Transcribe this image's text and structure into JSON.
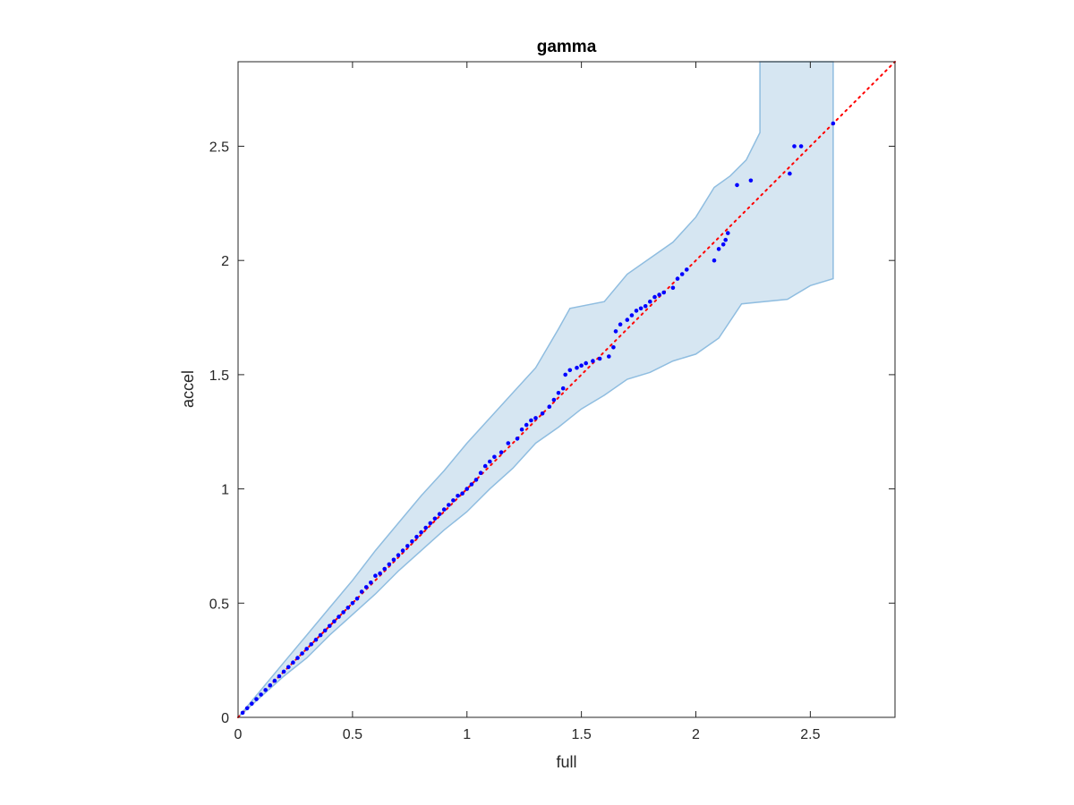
{
  "chart_data": {
    "type": "scatter",
    "title": "gamma",
    "xlabel": "full",
    "ylabel": "accel",
    "xlim": [
      0,
      2.87
    ],
    "ylim": [
      0,
      2.87
    ],
    "xticks": [
      0,
      0.5,
      1,
      1.5,
      2,
      2.5
    ],
    "yticks": [
      0,
      0.5,
      1,
      1.5,
      2,
      2.5
    ],
    "xtick_labels": [
      "0",
      "0.5",
      "1",
      "1.5",
      "2",
      "2.5"
    ],
    "ytick_labels": [
      "0",
      "0.5",
      "1",
      "1.5",
      "2",
      "2.5"
    ],
    "grid": false,
    "colors": {
      "points": "#0000ff",
      "reference_line": "#ff0000",
      "band_fill": "#d6e6f2",
      "band_edge": "#8fbde0",
      "axes": "#262626"
    },
    "reference_line": {
      "x": [
        0,
        2.87
      ],
      "y": [
        0,
        2.87
      ],
      "style": "dotted"
    },
    "confidence_band": {
      "upper": [
        [
          0,
          0
        ],
        [
          0.1,
          0.12
        ],
        [
          0.2,
          0.24
        ],
        [
          0.3,
          0.36
        ],
        [
          0.4,
          0.48
        ],
        [
          0.5,
          0.6
        ],
        [
          0.6,
          0.73
        ],
        [
          0.7,
          0.85
        ],
        [
          0.8,
          0.97
        ],
        [
          0.9,
          1.08
        ],
        [
          1.0,
          1.2
        ],
        [
          1.1,
          1.31
        ],
        [
          1.2,
          1.42
        ],
        [
          1.3,
          1.53
        ],
        [
          1.4,
          1.7
        ],
        [
          1.45,
          1.79
        ],
        [
          1.6,
          1.82
        ],
        [
          1.7,
          1.94
        ],
        [
          1.9,
          2.08
        ],
        [
          2.0,
          2.19
        ],
        [
          2.08,
          2.32
        ],
        [
          2.15,
          2.37
        ],
        [
          2.22,
          2.44
        ],
        [
          2.28,
          2.56
        ],
        [
          2.28,
          2.87
        ],
        [
          2.6,
          2.87
        ]
      ],
      "lower": [
        [
          0,
          0
        ],
        [
          0.1,
          0.09
        ],
        [
          0.2,
          0.18
        ],
        [
          0.3,
          0.26
        ],
        [
          0.4,
          0.36
        ],
        [
          0.5,
          0.45
        ],
        [
          0.6,
          0.54
        ],
        [
          0.7,
          0.64
        ],
        [
          0.8,
          0.73
        ],
        [
          0.9,
          0.82
        ],
        [
          1.0,
          0.9
        ],
        [
          1.1,
          1.0
        ],
        [
          1.2,
          1.09
        ],
        [
          1.3,
          1.2
        ],
        [
          1.4,
          1.27
        ],
        [
          1.5,
          1.35
        ],
        [
          1.6,
          1.41
        ],
        [
          1.7,
          1.48
        ],
        [
          1.8,
          1.51
        ],
        [
          1.9,
          1.56
        ],
        [
          2.0,
          1.59
        ],
        [
          2.1,
          1.66
        ],
        [
          2.2,
          1.81
        ],
        [
          2.4,
          1.83
        ],
        [
          2.5,
          1.89
        ],
        [
          2.6,
          1.92
        ]
      ]
    },
    "points": {
      "x": [
        0.02,
        0.04,
        0.06,
        0.08,
        0.1,
        0.12,
        0.14,
        0.16,
        0.18,
        0.2,
        0.22,
        0.24,
        0.26,
        0.28,
        0.3,
        0.32,
        0.34,
        0.36,
        0.38,
        0.4,
        0.42,
        0.44,
        0.46,
        0.48,
        0.5,
        0.52,
        0.54,
        0.56,
        0.58,
        0.6,
        0.62,
        0.64,
        0.66,
        0.68,
        0.7,
        0.72,
        0.74,
        0.76,
        0.78,
        0.8,
        0.82,
        0.84,
        0.86,
        0.88,
        0.9,
        0.92,
        0.94,
        0.96,
        0.98,
        1.0,
        1.02,
        1.04,
        1.06,
        1.08,
        1.1,
        1.12,
        1.15,
        1.18,
        1.22,
        1.24,
        1.26,
        1.28,
        1.3,
        1.33,
        1.36,
        1.38,
        1.4,
        1.42,
        1.43,
        1.45,
        1.48,
        1.5,
        1.52,
        1.55,
        1.58,
        1.62,
        1.64,
        1.65,
        1.67,
        1.7,
        1.72,
        1.74,
        1.76,
        1.78,
        1.8,
        1.82,
        1.84,
        1.86,
        1.9,
        1.92,
        1.94,
        1.96,
        2.08,
        2.1,
        2.12,
        2.13,
        2.14,
        2.18,
        2.24,
        2.41,
        2.43,
        2.46,
        2.6
      ],
      "y": [
        0.02,
        0.04,
        0.06,
        0.08,
        0.1,
        0.12,
        0.14,
        0.16,
        0.18,
        0.2,
        0.22,
        0.24,
        0.26,
        0.28,
        0.3,
        0.32,
        0.34,
        0.36,
        0.38,
        0.4,
        0.42,
        0.44,
        0.46,
        0.48,
        0.5,
        0.52,
        0.55,
        0.57,
        0.59,
        0.62,
        0.63,
        0.65,
        0.67,
        0.69,
        0.71,
        0.73,
        0.75,
        0.77,
        0.79,
        0.81,
        0.83,
        0.85,
        0.87,
        0.89,
        0.91,
        0.93,
        0.95,
        0.97,
        0.98,
        1.0,
        1.02,
        1.04,
        1.07,
        1.1,
        1.12,
        1.14,
        1.16,
        1.2,
        1.22,
        1.26,
        1.28,
        1.3,
        1.31,
        1.33,
        1.36,
        1.39,
        1.42,
        1.44,
        1.5,
        1.52,
        1.53,
        1.54,
        1.55,
        1.56,
        1.57,
        1.58,
        1.62,
        1.69,
        1.72,
        1.74,
        1.76,
        1.78,
        1.79,
        1.8,
        1.82,
        1.84,
        1.85,
        1.86,
        1.88,
        1.92,
        1.94,
        1.96,
        2.0,
        2.05,
        2.07,
        2.09,
        2.12,
        2.33,
        2.35,
        2.38,
        2.5,
        2.5,
        2.6
      ]
    }
  }
}
